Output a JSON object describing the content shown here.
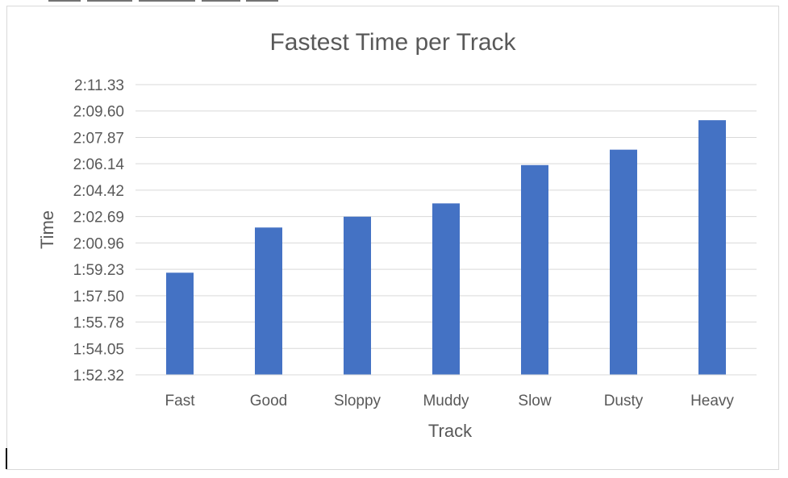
{
  "chart_data": {
    "type": "bar",
    "title": "Fastest Time per Track",
    "xlabel": "Track",
    "ylabel": "Time",
    "categories": [
      "Fast",
      "Good",
      "Sloppy",
      "Muddy",
      "Slow",
      "Dusty",
      "Heavy"
    ],
    "series": [
      {
        "values_seconds": [
          119.01,
          121.97,
          122.68,
          123.55,
          126.06,
          127.07,
          129.0
        ]
      }
    ],
    "y_ticks": [
      "1:52.32",
      "1:54.05",
      "1:55.78",
      "1:57.50",
      "1:59.23",
      "2:00.96",
      "2:02.69",
      "2:04.42",
      "2:06.14",
      "2:07.87",
      "2:09.60",
      "2:11.33"
    ],
    "ylim_seconds": [
      112.32,
      131.33
    ],
    "grid": true,
    "legend": "none",
    "bar_color": "#4472c4",
    "grid_color": "#d9d9d9",
    "text_color": "#595959"
  }
}
